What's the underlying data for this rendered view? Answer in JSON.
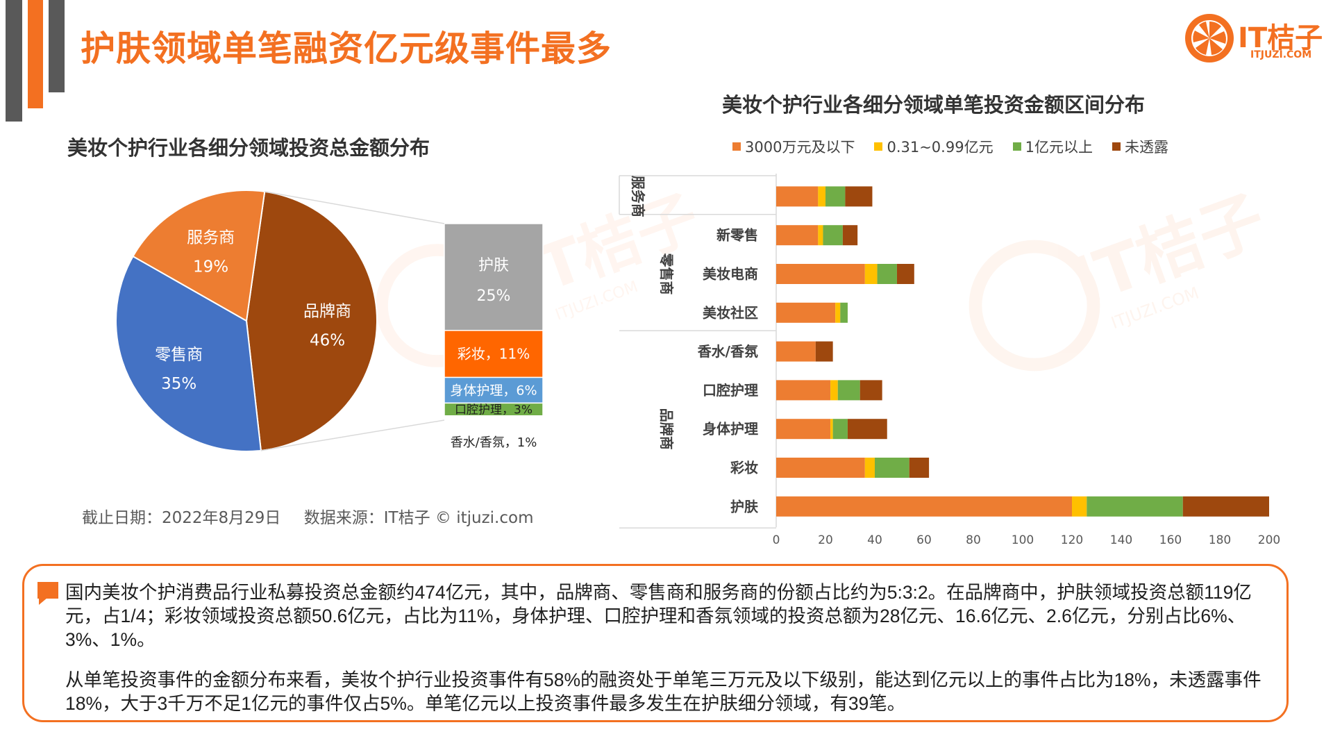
{
  "page_title": "护肤领域单笔融资亿元级事件最多",
  "logo": {
    "text": "IT桔子",
    "sub": "ITJUZI.COM"
  },
  "watermark": {
    "text": "IT桔子",
    "sub": "ITJUZI.COM"
  },
  "colors": {
    "accent": "#f37021",
    "pie_brand": "#9e480e",
    "pie_retail": "#4472c4",
    "pie_service": "#ed7d31",
    "seg_skincare": "#a5a5a5",
    "seg_makeup": "#ff6600",
    "seg_body": "#5b9bd5",
    "seg_oral": "#70ad47",
    "bar_low": "#ed7d31",
    "bar_mid": "#ffc000",
    "bar_high": "#70ad47",
    "bar_undisclosed": "#9e480e"
  },
  "source": {
    "cutoff": "截止日期：2022年8月29日",
    "data_source": "数据来源：IT桔子 © itjuzi.com"
  },
  "chart_data": [
    {
      "type": "pie",
      "title": "美妆个护行业各细分领域投资总金额分布",
      "slices": [
        {
          "label": "品牌商",
          "value_label": "46%",
          "value": 46
        },
        {
          "label": "零售商",
          "value_label": "35%",
          "value": 35
        },
        {
          "label": "服务商",
          "value_label": "19%",
          "value": 19
        }
      ],
      "breakdown_of": "品牌商",
      "breakdown": [
        {
          "label": "护肤",
          "value_label": "25%",
          "value": 25
        },
        {
          "label": "彩妆，11%",
          "value": 11
        },
        {
          "label": "身体护理，6%",
          "value": 6
        },
        {
          "label": "口腔护理，3%",
          "value": 3
        },
        {
          "label": "香水/香氛，1%",
          "value": 1
        }
      ]
    },
    {
      "type": "bar",
      "orientation": "horizontal",
      "stacked": true,
      "title": "美妆个护行业各细分领域单笔投资金额区间分布",
      "legend_position": "top",
      "series": [
        {
          "name": "3000万元及以下",
          "values": [
            17,
            17,
            36,
            24,
            16,
            22,
            22,
            36,
            120
          ]
        },
        {
          "name": "0.31~0.99亿元",
          "values": [
            3,
            2,
            5,
            2,
            0,
            3,
            1,
            4,
            6
          ]
        },
        {
          "name": "1亿元以上",
          "values": [
            8,
            8,
            8,
            3,
            0,
            9,
            6,
            14,
            39
          ]
        },
        {
          "name": "未透露",
          "values": [
            11,
            6,
            7,
            0,
            7,
            9,
            16,
            8,
            35
          ]
        }
      ],
      "categories": [
        "服务商",
        "新零售",
        "美妆电商",
        "美妆社区",
        "香水/香氛",
        "口腔护理",
        "身体护理",
        "彩妆",
        "护肤"
      ],
      "category_labels": [
        "",
        "新零售",
        "美妆电商",
        "美妆社区",
        "香水/香氛",
        "口腔护理",
        "身体护理",
        "彩妆",
        "护肤"
      ],
      "groups": [
        {
          "label": "服务商",
          "vertical_label": "服务\n商"
        },
        {
          "label": "零售商",
          "vertical_label": "零售商"
        },
        {
          "label": "品牌商",
          "vertical_label": "品牌商"
        }
      ],
      "xlim": [
        0,
        200
      ],
      "x_ticks": [
        0,
        20,
        40,
        60,
        80,
        100,
        120,
        140,
        160,
        180,
        200
      ]
    }
  ],
  "summary": {
    "p1": "国内美妆个护消费品行业私募投资总金额约474亿元，其中，品牌商、零售商和服务商的份额占比约为5:3:2。在品牌商中，护肤领域投资总额119亿元，占1/4；彩妆领域投资总额50.6亿元，占比为11%，身体护理、口腔护理和香氛领域的投资总额为28亿元、16.6亿元、2.6亿元，分别占比6%、3%、1%。",
    "p2": "从单笔投资事件的金额分布来看，美妆个护行业投资事件有58%的融资处于单笔三万元及以下级别，能达到亿元以上的事件占比为18%，未透露事件18%，大于3千万不足1亿元的事件仅占5%。单笔亿元以上投资事件最多发生在护肤细分领域，有39笔。"
  }
}
